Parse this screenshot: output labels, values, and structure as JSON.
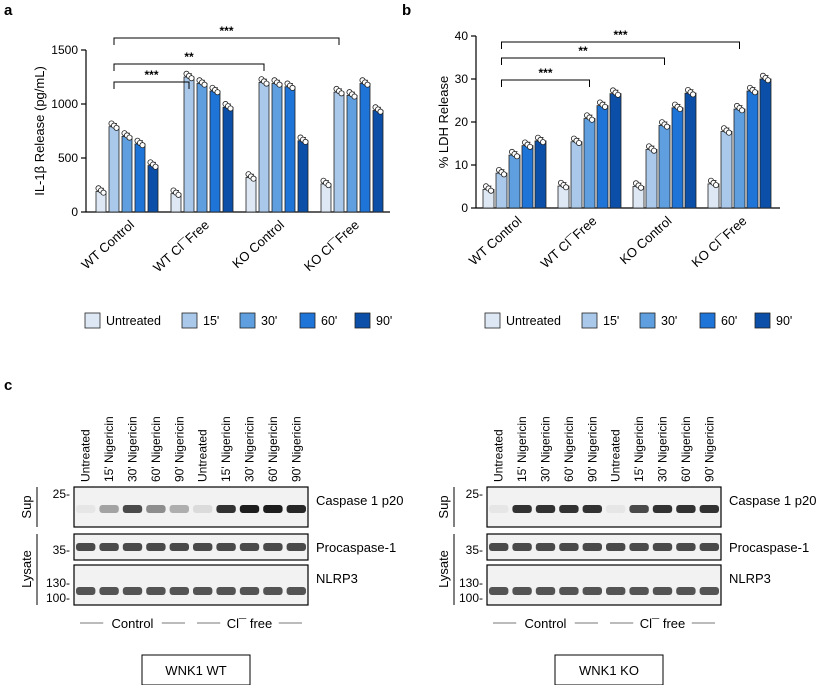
{
  "panels": {
    "a": "a",
    "b": "b",
    "c": "c"
  },
  "colors": {
    "untreated": "#dde8f4",
    "15": "#a9c8ea",
    "30": "#5f9fe0",
    "60": "#1f74d8",
    "90": "#0b4fa8",
    "dot": "#ffffff"
  },
  "chart_data": [
    {
      "type": "bar",
      "ylabel": "IL-1β Release (pg/mL)",
      "ylim": [
        0,
        1500
      ],
      "yticks": [
        "0",
        "500",
        "1000",
        "1500"
      ],
      "categories": [
        "WT Control",
        "WT Cl¯Free",
        "KO Control",
        "KO Cl¯Free"
      ],
      "series": [
        {
          "name": "Untreated",
          "values": [
            190,
            170,
            320,
            260
          ]
        },
        {
          "name": "15'",
          "values": [
            790,
            1250,
            1200,
            1110
          ]
        },
        {
          "name": "30'",
          "values": [
            700,
            1190,
            1190,
            1080
          ]
        },
        {
          "name": "60'",
          "values": [
            630,
            1120,
            1160,
            1190
          ]
        },
        {
          "name": "90'",
          "values": [
            430,
            970,
            660,
            940
          ]
        }
      ],
      "significance": [
        {
          "label": "***",
          "from": [
            "WT Control",
            "15'"
          ],
          "to": [
            "WT Cl¯Free",
            "15'"
          ]
        },
        {
          "label": "**",
          "from": [
            "WT Control",
            "15'"
          ],
          "to": [
            "KO Control",
            "15'"
          ]
        },
        {
          "label": "***",
          "from": [
            "WT Control",
            "15'"
          ],
          "to": [
            "KO Cl¯Free",
            "15'"
          ]
        }
      ]
    },
    {
      "type": "bar",
      "ylabel": "% LDH Release",
      "ylim": [
        0,
        40
      ],
      "yticks": [
        "0",
        "10",
        "20",
        "30",
        "40"
      ],
      "categories": [
        "WT Control",
        "WT Cl¯Free",
        "KO Control",
        "KO Cl¯Free"
      ],
      "series": [
        {
          "name": "Untreated",
          "values": [
            4.3,
            5.1,
            5.0,
            5.6
          ]
        },
        {
          "name": "15'",
          "values": [
            8.1,
            15.4,
            13.6,
            17.8
          ]
        },
        {
          "name": "30'",
          "values": [
            12.3,
            20.8,
            19.2,
            23.0
          ]
        },
        {
          "name": "60'",
          "values": [
            14.5,
            23.8,
            23.3,
            27.2
          ]
        },
        {
          "name": "90'",
          "values": [
            15.6,
            26.6,
            26.7,
            30.0
          ]
        }
      ],
      "significance": [
        {
          "label": "***",
          "from": [
            "WT Control",
            "15'"
          ],
          "to": [
            "WT Cl¯Free",
            "30'"
          ]
        },
        {
          "label": "**",
          "from": [
            "WT Control",
            "15'"
          ],
          "to": [
            "KO Control",
            "30'"
          ]
        },
        {
          "label": "***",
          "from": [
            "WT Control",
            "15'"
          ],
          "to": [
            "KO Cl¯Free",
            "30'"
          ]
        }
      ]
    }
  ],
  "legend": [
    "Untreated",
    "15'",
    "30'",
    "60'",
    "90'"
  ],
  "blots": {
    "lane_labels": [
      "Untreated",
      "15' Nigericin",
      "30' Nigericin",
      "60' Nigericin",
      "90' Nigericin",
      "Untreated",
      "15' Nigericin",
      "30' Nigericin",
      "60' Nigericin",
      "90' Nigericin"
    ],
    "sup": "Sup",
    "lysate": "Lysate",
    "mw_25": "25-",
    "mw_35": "35-",
    "mw_130": "130-",
    "mw_100": "100-",
    "caspase": "Caspase 1 p20",
    "procaspase": "Procaspase-1",
    "nlrp3": "NLRP3",
    "control": "Control",
    "clfree": "Cl¯ free",
    "left_box": "WNK1 WT",
    "right_box": "WNK1 KO",
    "left_caspase_intensity": [
      0.05,
      0.35,
      0.75,
      0.45,
      0.3,
      0.1,
      0.85,
      0.95,
      0.95,
      0.9
    ],
    "right_caspase_intensity": [
      0.05,
      0.85,
      0.85,
      0.85,
      0.85,
      0.05,
      0.75,
      0.85,
      0.85,
      0.85
    ]
  }
}
